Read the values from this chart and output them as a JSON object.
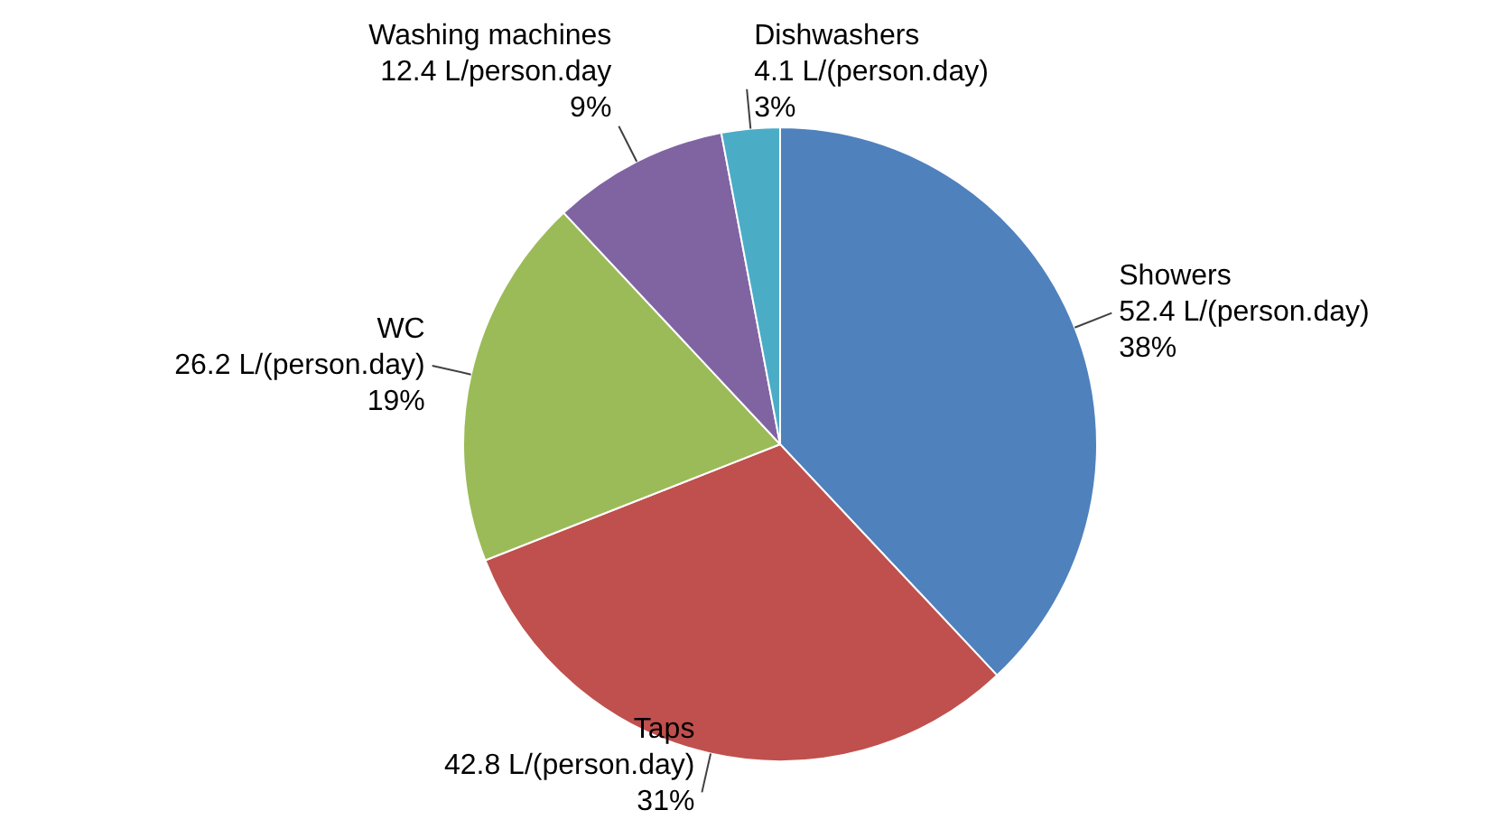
{
  "chart_data": {
    "type": "pie",
    "categories": [
      "Showers",
      "Taps",
      "WC",
      "Washing machines",
      "Dishwashers"
    ],
    "values": [
      52.4,
      42.8,
      26.2,
      12.4,
      4.1
    ],
    "colors": [
      "#4f81bd",
      "#c0504d",
      "#9bbb59",
      "#8064a2",
      "#4bacc6"
    ],
    "value_labels": [
      "52.4 L/(person.day)\n38%",
      "42.8 L/(person.day)\n31%",
      "26.2 L/(person.day)\n19%",
      "12.4 L/person.day\n9%",
      "4.1 L/(person.day)\n3%"
    ],
    "legend": false
  }
}
